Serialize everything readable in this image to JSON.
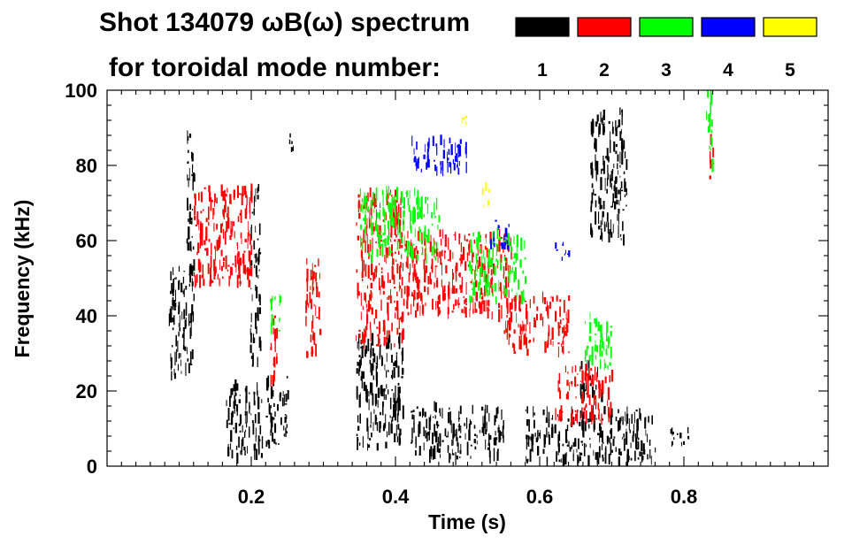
{
  "chart_data": {
    "type": "heatmap",
    "title_line1": "Shot 134079 ωB(ω) spectrum",
    "title_line2": "for toroidal mode number:",
    "xlabel": "Time (s)",
    "ylabel": "Frequency (kHz)",
    "xlim": [
      0.0,
      1.0
    ],
    "ylim": [
      0,
      100
    ],
    "x_ticks": [
      {
        "value": 0.2,
        "label": "0.2"
      },
      {
        "value": 0.4,
        "label": "0.4"
      },
      {
        "value": 0.6,
        "label": "0.6"
      },
      {
        "value": 0.8,
        "label": "0.8"
      }
    ],
    "y_ticks": [
      {
        "value": 0,
        "label": "0"
      },
      {
        "value": 20,
        "label": "20"
      },
      {
        "value": 40,
        "label": "40"
      },
      {
        "value": 60,
        "label": "60"
      },
      {
        "value": 80,
        "label": "80"
      },
      {
        "value": 100,
        "label": "100"
      }
    ],
    "legend": [
      {
        "n": "1",
        "color": "#000000"
      },
      {
        "n": "2",
        "color": "#ff0000"
      },
      {
        "n": "3",
        "color": "#00ff00"
      },
      {
        "n": "4",
        "color": "#0000ff"
      },
      {
        "n": "5",
        "color": "#ffff00"
      }
    ],
    "series": [
      {
        "name": "n=1",
        "color": "#000000",
        "blobs": [
          {
            "t": [
              0.085,
              0.12
            ],
            "f": [
              24,
              53
            ]
          },
          {
            "t": [
              0.11,
              0.12
            ],
            "f": [
              50,
              90
            ]
          },
          {
            "t": [
              0.165,
              0.215
            ],
            "f": [
              2,
              22
            ]
          },
          {
            "t": [
              0.198,
              0.212
            ],
            "f": [
              26,
              75
            ]
          },
          {
            "t": [
              0.22,
              0.25
            ],
            "f": [
              5,
              24
            ]
          },
          {
            "t": [
              0.25,
              0.26
            ],
            "f": [
              84,
              88
            ]
          },
          {
            "t": [
              0.345,
              0.41
            ],
            "f": [
              5,
              34
            ]
          },
          {
            "t": [
              0.42,
              0.55
            ],
            "f": [
              2,
              16
            ]
          },
          {
            "t": [
              0.58,
              0.76
            ],
            "f": [
              1,
              15
            ]
          },
          {
            "t": [
              0.655,
              0.685
            ],
            "f": [
              18,
              28
            ]
          },
          {
            "t": [
              0.67,
              0.72
            ],
            "f": [
              60,
              95
            ]
          },
          {
            "t": [
              0.78,
              0.81
            ],
            "f": [
              5,
              10
            ]
          }
        ]
      },
      {
        "name": "n=2",
        "color": "#ff0000",
        "blobs": [
          {
            "t": [
              0.12,
              0.2
            ],
            "f": [
              48,
              74
            ]
          },
          {
            "t": [
              0.225,
              0.235
            ],
            "f": [
              20,
              40
            ]
          },
          {
            "t": [
              0.275,
              0.295
            ],
            "f": [
              29,
              55
            ]
          },
          {
            "t": [
              0.345,
              0.41
            ],
            "f": [
              32,
              73
            ]
          },
          {
            "t": [
              0.41,
              0.56
            ],
            "f": [
              40,
              62
            ]
          },
          {
            "t": [
              0.55,
              0.64
            ],
            "f": [
              30,
              45
            ]
          },
          {
            "t": [
              0.62,
              0.7
            ],
            "f": [
              12,
              26
            ]
          },
          {
            "t": [
              0.835,
              0.84
            ],
            "f": [
              76,
              88
            ]
          }
        ]
      },
      {
        "name": "n=3",
        "color": "#00ff00",
        "blobs": [
          {
            "t": [
              0.225,
              0.24
            ],
            "f": [
              35,
              45
            ]
          },
          {
            "t": [
              0.35,
              0.46
            ],
            "f": [
              55,
              73
            ]
          },
          {
            "t": [
              0.5,
              0.58
            ],
            "f": [
              44,
              62
            ]
          },
          {
            "t": [
              0.66,
              0.7
            ],
            "f": [
              26,
              40
            ]
          },
          {
            "t": [
              0.83,
              0.84
            ],
            "f": [
              80,
              100
            ]
          }
        ]
      },
      {
        "name": "n=4",
        "color": "#0000ff",
        "blobs": [
          {
            "t": [
              0.42,
              0.5
            ],
            "f": [
              78,
              87
            ]
          },
          {
            "t": [
              0.53,
              0.56
            ],
            "f": [
              58,
              66
            ]
          },
          {
            "t": [
              0.62,
              0.64
            ],
            "f": [
              55,
              60
            ]
          }
        ]
      },
      {
        "name": "n=5",
        "color": "#ffff00",
        "blobs": [
          {
            "t": [
              0.49,
              0.5
            ],
            "f": [
              90,
              93
            ]
          },
          {
            "t": [
              0.52,
              0.53
            ],
            "f": [
              68,
              75
            ]
          }
        ]
      }
    ]
  }
}
